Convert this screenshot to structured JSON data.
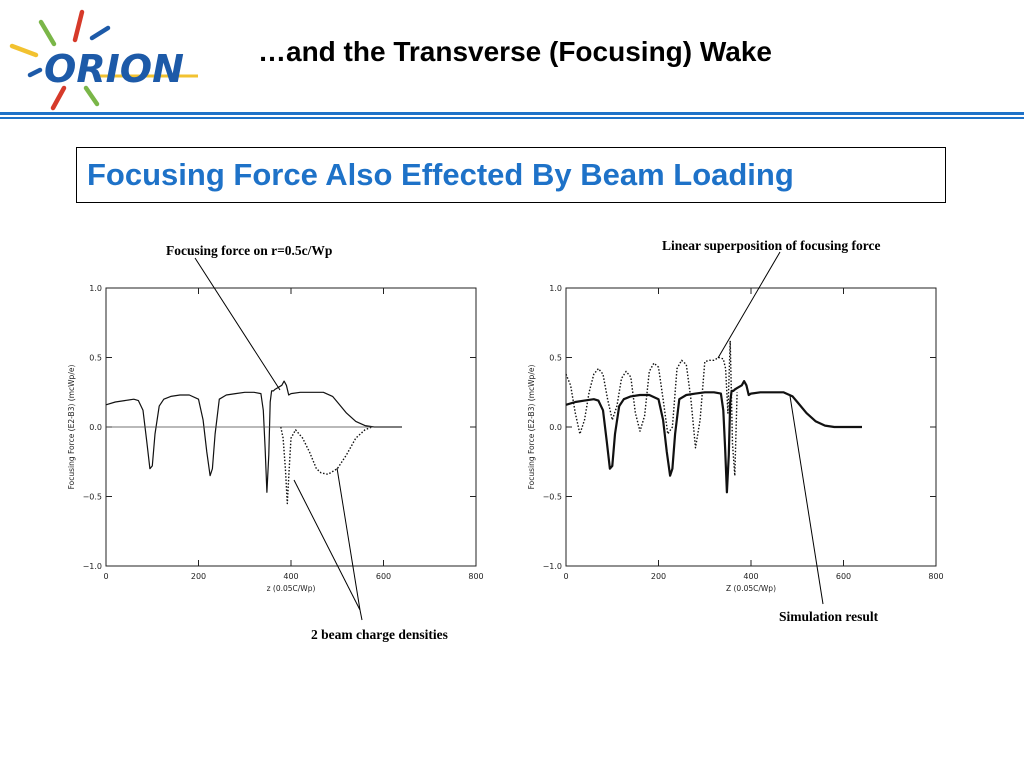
{
  "slide": {
    "title": "…and the Transverse (Focusing) Wake",
    "subtitle": "Focusing Force Also Effected By Beam Loading",
    "logo_text": "ORION",
    "colors": {
      "accent_blue": "#1e72c8",
      "logo_blue": "#1d5aa8",
      "logo_red": "#d63a2a",
      "logo_green": "#7ab648",
      "logo_yellow": "#f2c230"
    }
  },
  "annotations": {
    "left_top": "Focusing force on r=0.5c/Wp",
    "left_bottom": "2 beam charge densities",
    "right_top": "Linear superposition of focusing force",
    "right_bottom": "Simulation result"
  },
  "chart_data": [
    {
      "type": "line",
      "xlabel": "z (0.05C/Wp)",
      "ylabel": "Focusing Force (E2-B3) (mcWp/e)",
      "xlim": [
        0,
        800
      ],
      "ylim": [
        -1.0,
        1.0
      ],
      "xticks": [
        0,
        200,
        400,
        600,
        800
      ],
      "yticks": [
        -1.0,
        -0.5,
        0.0,
        0.5,
        1.0
      ],
      "xtick_labels": [
        "0",
        "200",
        "400",
        "600",
        "800"
      ],
      "ytick_labels": [
        "−1.0",
        "−0.5",
        "0.0",
        "0.5",
        "1.0"
      ],
      "series": [
        {
          "style": "solid",
          "x": [
            0,
            20,
            40,
            60,
            70,
            80,
            88,
            95,
            100,
            106,
            115,
            125,
            140,
            160,
            180,
            200,
            210,
            218,
            225,
            230,
            236,
            245,
            260,
            280,
            300,
            320,
            335,
            340,
            344,
            348,
            352,
            355,
            358,
            362,
            365,
            370,
            380,
            385,
            390,
            395,
            400,
            420,
            450,
            470,
            490,
            500,
            520,
            540,
            560,
            580,
            600,
            640
          ],
          "y": [
            0.16,
            0.18,
            0.19,
            0.2,
            0.19,
            0.12,
            -0.1,
            -0.3,
            -0.28,
            -0.05,
            0.15,
            0.2,
            0.22,
            0.23,
            0.23,
            0.2,
            0.05,
            -0.18,
            -0.35,
            -0.3,
            -0.05,
            0.2,
            0.23,
            0.24,
            0.25,
            0.25,
            0.24,
            0.12,
            -0.15,
            -0.47,
            -0.2,
            0.18,
            0.26,
            0.26,
            0.27,
            0.28,
            0.3,
            0.33,
            0.3,
            0.23,
            0.24,
            0.25,
            0.25,
            0.25,
            0.22,
            0.18,
            0.1,
            0.04,
            0.01,
            0.0,
            0.0,
            0.0
          ]
        },
        {
          "style": "dotted",
          "x": [
            378,
            383,
            388,
            392,
            396,
            400,
            410,
            425,
            440,
            455,
            465,
            480,
            500,
            520,
            540,
            560,
            575
          ],
          "y": [
            0.0,
            -0.08,
            -0.3,
            -0.55,
            -0.3,
            -0.08,
            -0.02,
            -0.08,
            -0.18,
            -0.3,
            -0.33,
            -0.34,
            -0.3,
            -0.2,
            -0.08,
            -0.02,
            0.0
          ]
        },
        {
          "style": "zero-line",
          "x": [
            0,
            640
          ],
          "y": [
            0.0,
            0.0
          ]
        }
      ]
    },
    {
      "type": "line",
      "xlabel": "Z (0.05C/Wp)",
      "ylabel": "Focusing Force (E2-B3) (mcWp/e)",
      "xlim": [
        0,
        800
      ],
      "ylim": [
        -1.0,
        1.0
      ],
      "xticks": [
        0,
        200,
        400,
        600,
        800
      ],
      "yticks": [
        -1.0,
        -0.5,
        0.0,
        0.5,
        1.0
      ],
      "xtick_labels": [
        "0",
        "200",
        "400",
        "600",
        "800"
      ],
      "ytick_labels": [
        "−1.0",
        "−0.5",
        "0.0",
        "0.5",
        "1.0"
      ],
      "series": [
        {
          "style": "solid-thick",
          "x": [
            0,
            20,
            40,
            60,
            70,
            80,
            88,
            95,
            100,
            106,
            115,
            125,
            140,
            160,
            180,
            200,
            210,
            218,
            225,
            230,
            236,
            245,
            260,
            280,
            300,
            320,
            335,
            340,
            344,
            348,
            352,
            355,
            358,
            362,
            365,
            370,
            380,
            385,
            390,
            395,
            400,
            420,
            450,
            470,
            490,
            500,
            520,
            540,
            560,
            580,
            600,
            640
          ],
          "y": [
            0.16,
            0.18,
            0.19,
            0.2,
            0.19,
            0.12,
            -0.1,
            -0.3,
            -0.28,
            -0.05,
            0.15,
            0.2,
            0.22,
            0.23,
            0.23,
            0.2,
            0.05,
            -0.18,
            -0.35,
            -0.3,
            -0.05,
            0.2,
            0.23,
            0.24,
            0.25,
            0.25,
            0.24,
            0.12,
            -0.15,
            -0.47,
            -0.2,
            0.18,
            0.26,
            0.26,
            0.27,
            0.28,
            0.3,
            0.33,
            0.3,
            0.23,
            0.24,
            0.25,
            0.25,
            0.25,
            0.22,
            0.18,
            0.1,
            0.04,
            0.01,
            0.0,
            0.0,
            0.0
          ]
        },
        {
          "style": "dotted",
          "x": [
            0,
            10,
            20,
            30,
            40,
            50,
            60,
            70,
            80,
            90,
            100,
            110,
            120,
            130,
            140,
            150,
            160,
            170,
            180,
            190,
            200,
            210,
            220,
            230,
            240,
            250,
            260,
            270,
            280,
            290,
            300,
            310,
            320,
            330,
            340,
            345,
            350,
            355,
            360,
            365,
            370
          ],
          "y": [
            0.38,
            0.3,
            0.1,
            -0.05,
            0.05,
            0.25,
            0.38,
            0.42,
            0.38,
            0.2,
            0.05,
            0.15,
            0.35,
            0.4,
            0.36,
            0.1,
            -0.03,
            0.08,
            0.4,
            0.46,
            0.43,
            0.2,
            -0.05,
            0.0,
            0.42,
            0.48,
            0.45,
            0.2,
            -0.15,
            0.05,
            0.47,
            0.48,
            0.48,
            0.5,
            0.49,
            0.42,
            0.1,
            0.62,
            -0.12,
            -0.35,
            0.25
          ]
        }
      ]
    }
  ]
}
